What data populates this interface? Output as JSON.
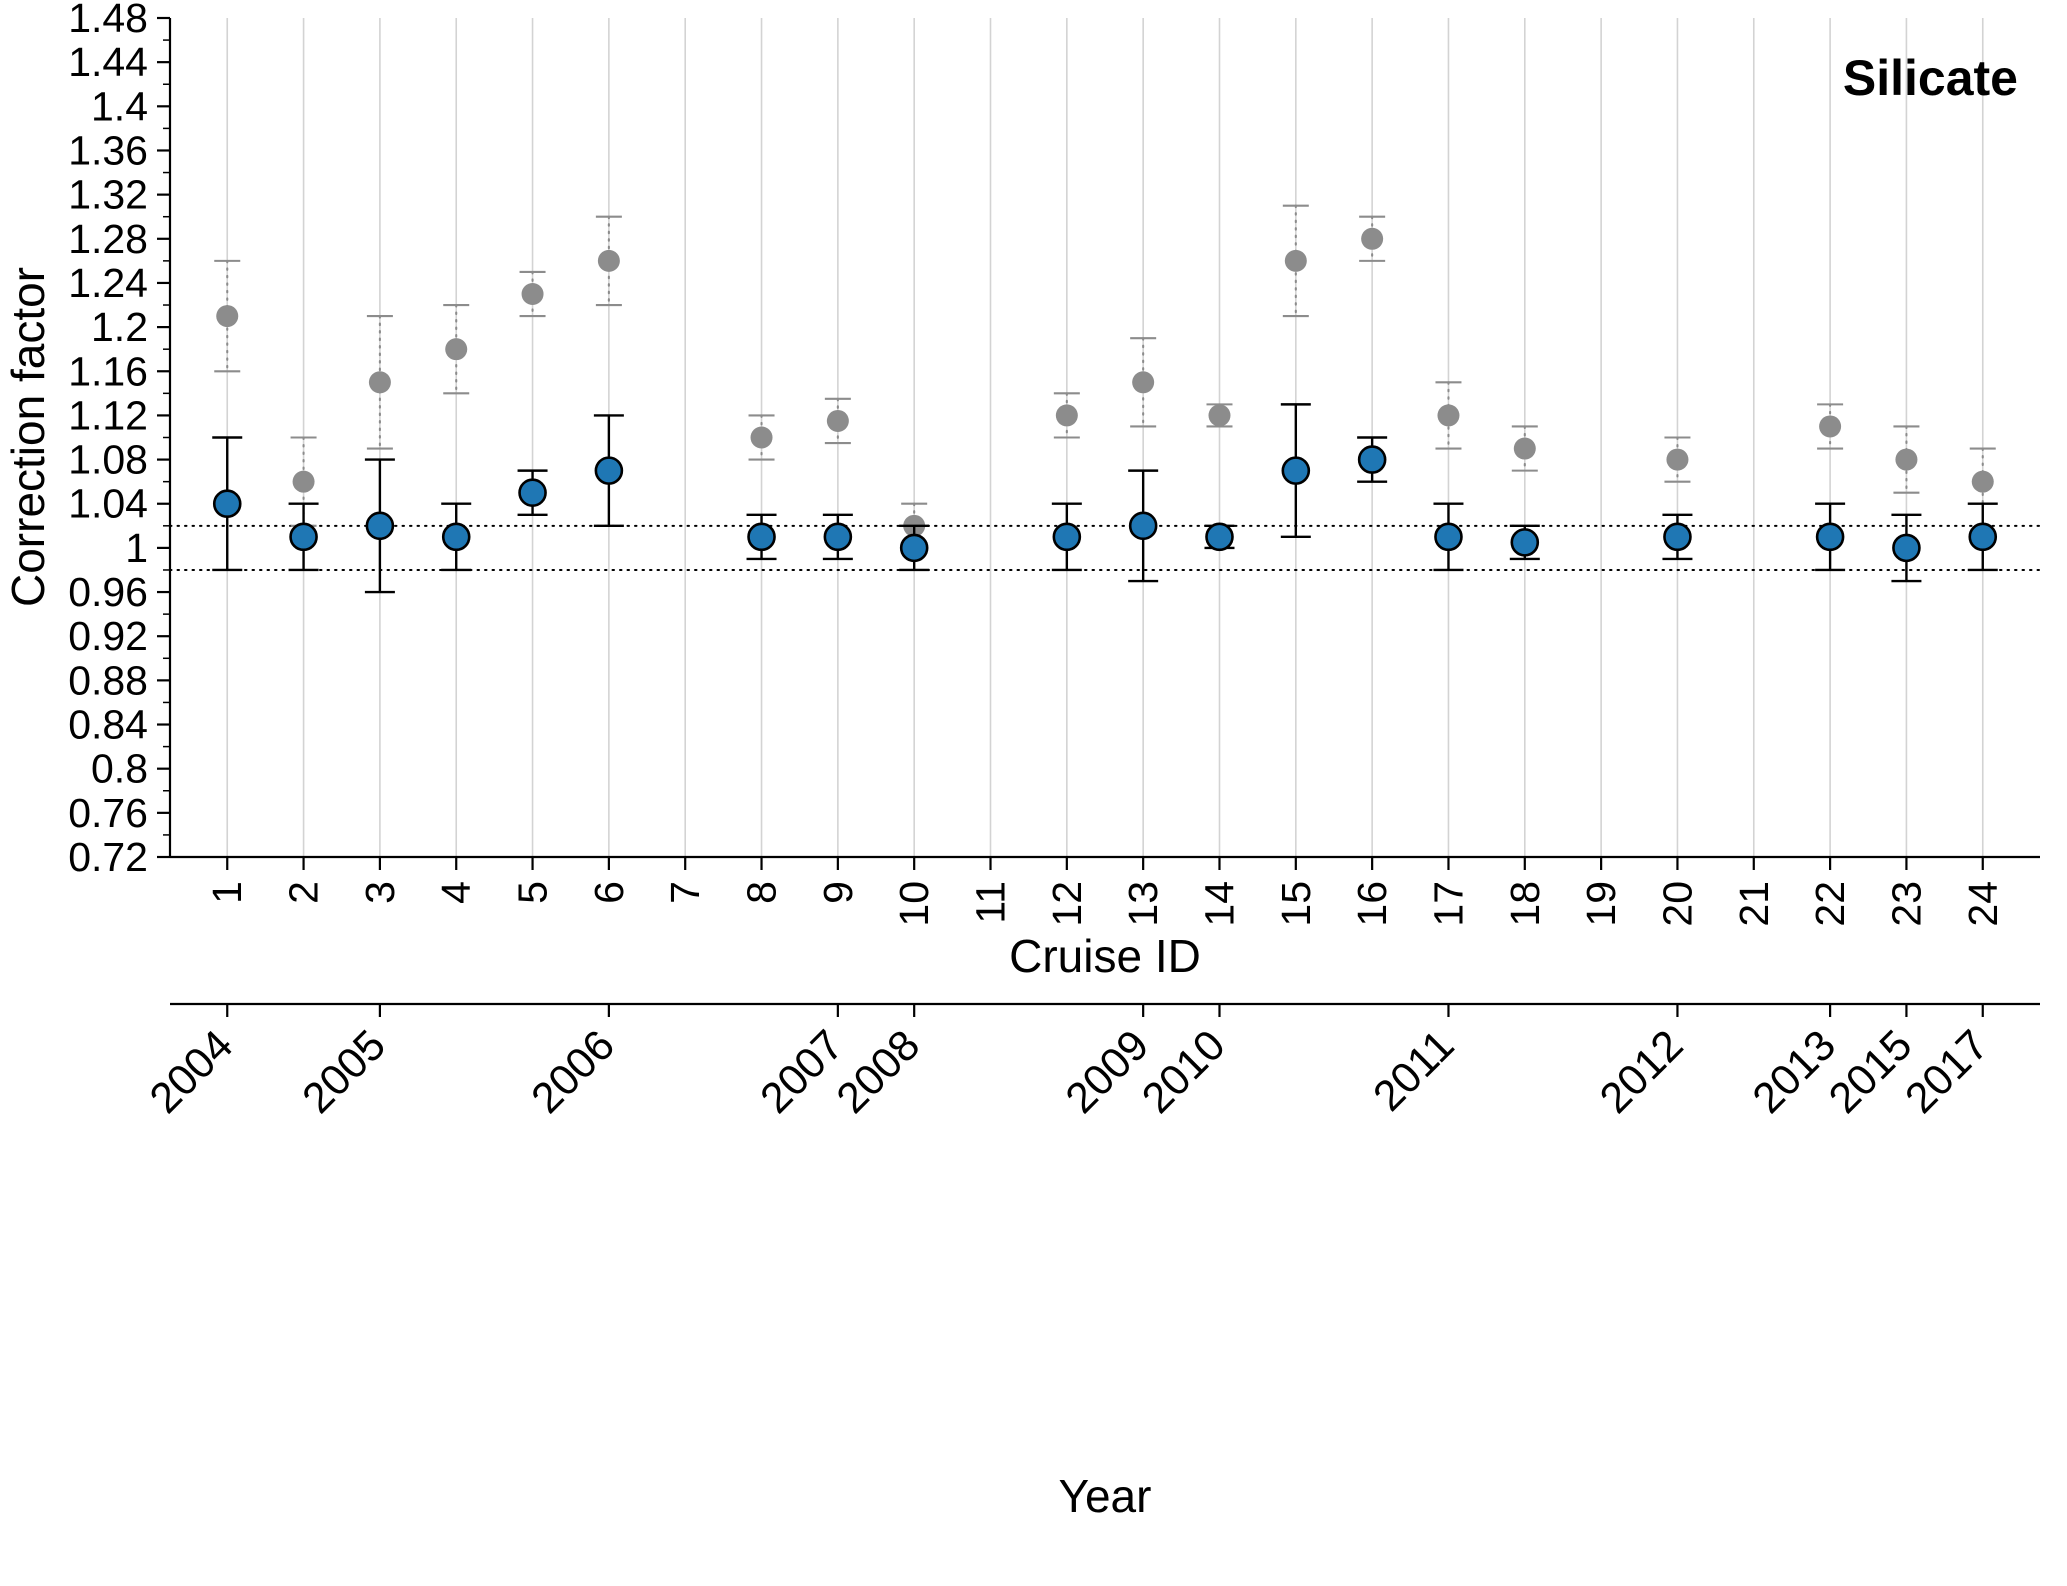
{
  "chart_data": {
    "type": "scatter",
    "title": "Silicate",
    "xlabel": "Cruise ID",
    "ylabel": "Correction factor",
    "x2label": "Year",
    "ylim": [
      0.72,
      1.48
    ],
    "grid": "vertical-only",
    "legend": "none",
    "reference_lines": [
      1.02,
      0.98
    ],
    "xticks": [
      1,
      2,
      3,
      4,
      5,
      6,
      7,
      8,
      9,
      10,
      11,
      12,
      13,
      14,
      15,
      16,
      17,
      18,
      19,
      20,
      21,
      22,
      23,
      24
    ],
    "yticks": [
      {
        "v": 1.48,
        "label": "1.48"
      },
      {
        "v": 1.44,
        "label": "1.44"
      },
      {
        "v": 1.4,
        "label": "1.4"
      },
      {
        "v": 1.36,
        "label": "1.36"
      },
      {
        "v": 1.32,
        "label": "1.32"
      },
      {
        "v": 1.28,
        "label": "1.28"
      },
      {
        "v": 1.24,
        "label": "1.24"
      },
      {
        "v": 1.2,
        "label": "1.2"
      },
      {
        "v": 1.16,
        "label": "1.16"
      },
      {
        "v": 1.12,
        "label": "1.12"
      },
      {
        "v": 1.08,
        "label": "1.08"
      },
      {
        "v": 1.04,
        "label": "1.04"
      },
      {
        "v": 1.0,
        "label": "1"
      },
      {
        "v": 0.96,
        "label": "0.96"
      },
      {
        "v": 0.92,
        "label": "0.92"
      },
      {
        "v": 0.88,
        "label": "0.88"
      },
      {
        "v": 0.84,
        "label": "0.84"
      },
      {
        "v": 0.8,
        "label": "0.8"
      },
      {
        "v": 0.76,
        "label": "0.76"
      },
      {
        "v": 0.72,
        "label": "0.72"
      }
    ],
    "colors": {
      "blue": "#1f77b4",
      "gray": "#8c8c8c",
      "grid": "#d3d3d3",
      "axis": "#000000"
    },
    "series": [
      {
        "name": "gray",
        "color": "#8c8c8c",
        "error_style": "dotted",
        "points": [
          {
            "x": 1,
            "y": 1.21,
            "lo": 1.16,
            "hi": 1.26
          },
          {
            "x": 2,
            "y": 1.06,
            "lo": 1.02,
            "hi": 1.1
          },
          {
            "x": 3,
            "y": 1.15,
            "lo": 1.09,
            "hi": 1.21
          },
          {
            "x": 4,
            "y": 1.18,
            "lo": 1.14,
            "hi": 1.22
          },
          {
            "x": 5,
            "y": 1.23,
            "lo": 1.21,
            "hi": 1.25
          },
          {
            "x": 6,
            "y": 1.26,
            "lo": 1.22,
            "hi": 1.3
          },
          {
            "x": 8,
            "y": 1.1,
            "lo": 1.08,
            "hi": 1.12
          },
          {
            "x": 9,
            "y": 1.115,
            "lo": 1.095,
            "hi": 1.135
          },
          {
            "x": 10,
            "y": 1.02,
            "lo": 1.0,
            "hi": 1.04
          },
          {
            "x": 12,
            "y": 1.12,
            "lo": 1.1,
            "hi": 1.14
          },
          {
            "x": 13,
            "y": 1.15,
            "lo": 1.11,
            "hi": 1.19
          },
          {
            "x": 14,
            "y": 1.12,
            "lo": 1.11,
            "hi": 1.13
          },
          {
            "x": 15,
            "y": 1.26,
            "lo": 1.21,
            "hi": 1.31
          },
          {
            "x": 16,
            "y": 1.28,
            "lo": 1.26,
            "hi": 1.3
          },
          {
            "x": 17,
            "y": 1.12,
            "lo": 1.09,
            "hi": 1.15
          },
          {
            "x": 18,
            "y": 1.09,
            "lo": 1.07,
            "hi": 1.11
          },
          {
            "x": 20,
            "y": 1.08,
            "lo": 1.06,
            "hi": 1.1
          },
          {
            "x": 22,
            "y": 1.11,
            "lo": 1.09,
            "hi": 1.13
          },
          {
            "x": 23,
            "y": 1.08,
            "lo": 1.05,
            "hi": 1.11
          },
          {
            "x": 24,
            "y": 1.06,
            "lo": 1.04,
            "hi": 1.09
          }
        ]
      },
      {
        "name": "blue",
        "color": "#1f77b4",
        "edge": "#000000",
        "error_style": "solid",
        "error_color": "#000000",
        "points": [
          {
            "x": 1,
            "y": 1.04,
            "lo": 0.98,
            "hi": 1.1
          },
          {
            "x": 2,
            "y": 1.01,
            "lo": 0.98,
            "hi": 1.04
          },
          {
            "x": 3,
            "y": 1.02,
            "lo": 0.96,
            "hi": 1.08
          },
          {
            "x": 4,
            "y": 1.01,
            "lo": 0.98,
            "hi": 1.04
          },
          {
            "x": 5,
            "y": 1.05,
            "lo": 1.03,
            "hi": 1.07
          },
          {
            "x": 6,
            "y": 1.07,
            "lo": 1.02,
            "hi": 1.12
          },
          {
            "x": 8,
            "y": 1.01,
            "lo": 0.99,
            "hi": 1.03
          },
          {
            "x": 9,
            "y": 1.01,
            "lo": 0.99,
            "hi": 1.03
          },
          {
            "x": 10,
            "y": 1.0,
            "lo": 0.98,
            "hi": 1.02
          },
          {
            "x": 12,
            "y": 1.01,
            "lo": 0.98,
            "hi": 1.04
          },
          {
            "x": 13,
            "y": 1.02,
            "lo": 0.97,
            "hi": 1.07
          },
          {
            "x": 14,
            "y": 1.01,
            "lo": 1.0,
            "hi": 1.02
          },
          {
            "x": 15,
            "y": 1.07,
            "lo": 1.01,
            "hi": 1.13
          },
          {
            "x": 16,
            "y": 1.08,
            "lo": 1.06,
            "hi": 1.1
          },
          {
            "x": 17,
            "y": 1.01,
            "lo": 0.98,
            "hi": 1.04
          },
          {
            "x": 18,
            "y": 1.005,
            "lo": 0.99,
            "hi": 1.02
          },
          {
            "x": 20,
            "y": 1.01,
            "lo": 0.99,
            "hi": 1.03
          },
          {
            "x": 22,
            "y": 1.01,
            "lo": 0.98,
            "hi": 1.04
          },
          {
            "x": 23,
            "y": 1.0,
            "lo": 0.97,
            "hi": 1.03
          },
          {
            "x": 24,
            "y": 1.01,
            "lo": 0.98,
            "hi": 1.04
          }
        ]
      }
    ],
    "year_axis": {
      "ticks": [
        {
          "x": 1,
          "label": "2004"
        },
        {
          "x": 3,
          "label": "2005"
        },
        {
          "x": 6,
          "label": "2006"
        },
        {
          "x": 9,
          "label": "2007"
        },
        {
          "x": 10,
          "label": "2008"
        },
        {
          "x": 13,
          "label": "2009"
        },
        {
          "x": 14,
          "label": "2010"
        },
        {
          "x": 17,
          "label": "2011"
        },
        {
          "x": 20,
          "label": "2012"
        },
        {
          "x": 22,
          "label": "2013"
        },
        {
          "x": 23,
          "label": "2015"
        },
        {
          "x": 24,
          "label": "2017"
        }
      ]
    }
  }
}
